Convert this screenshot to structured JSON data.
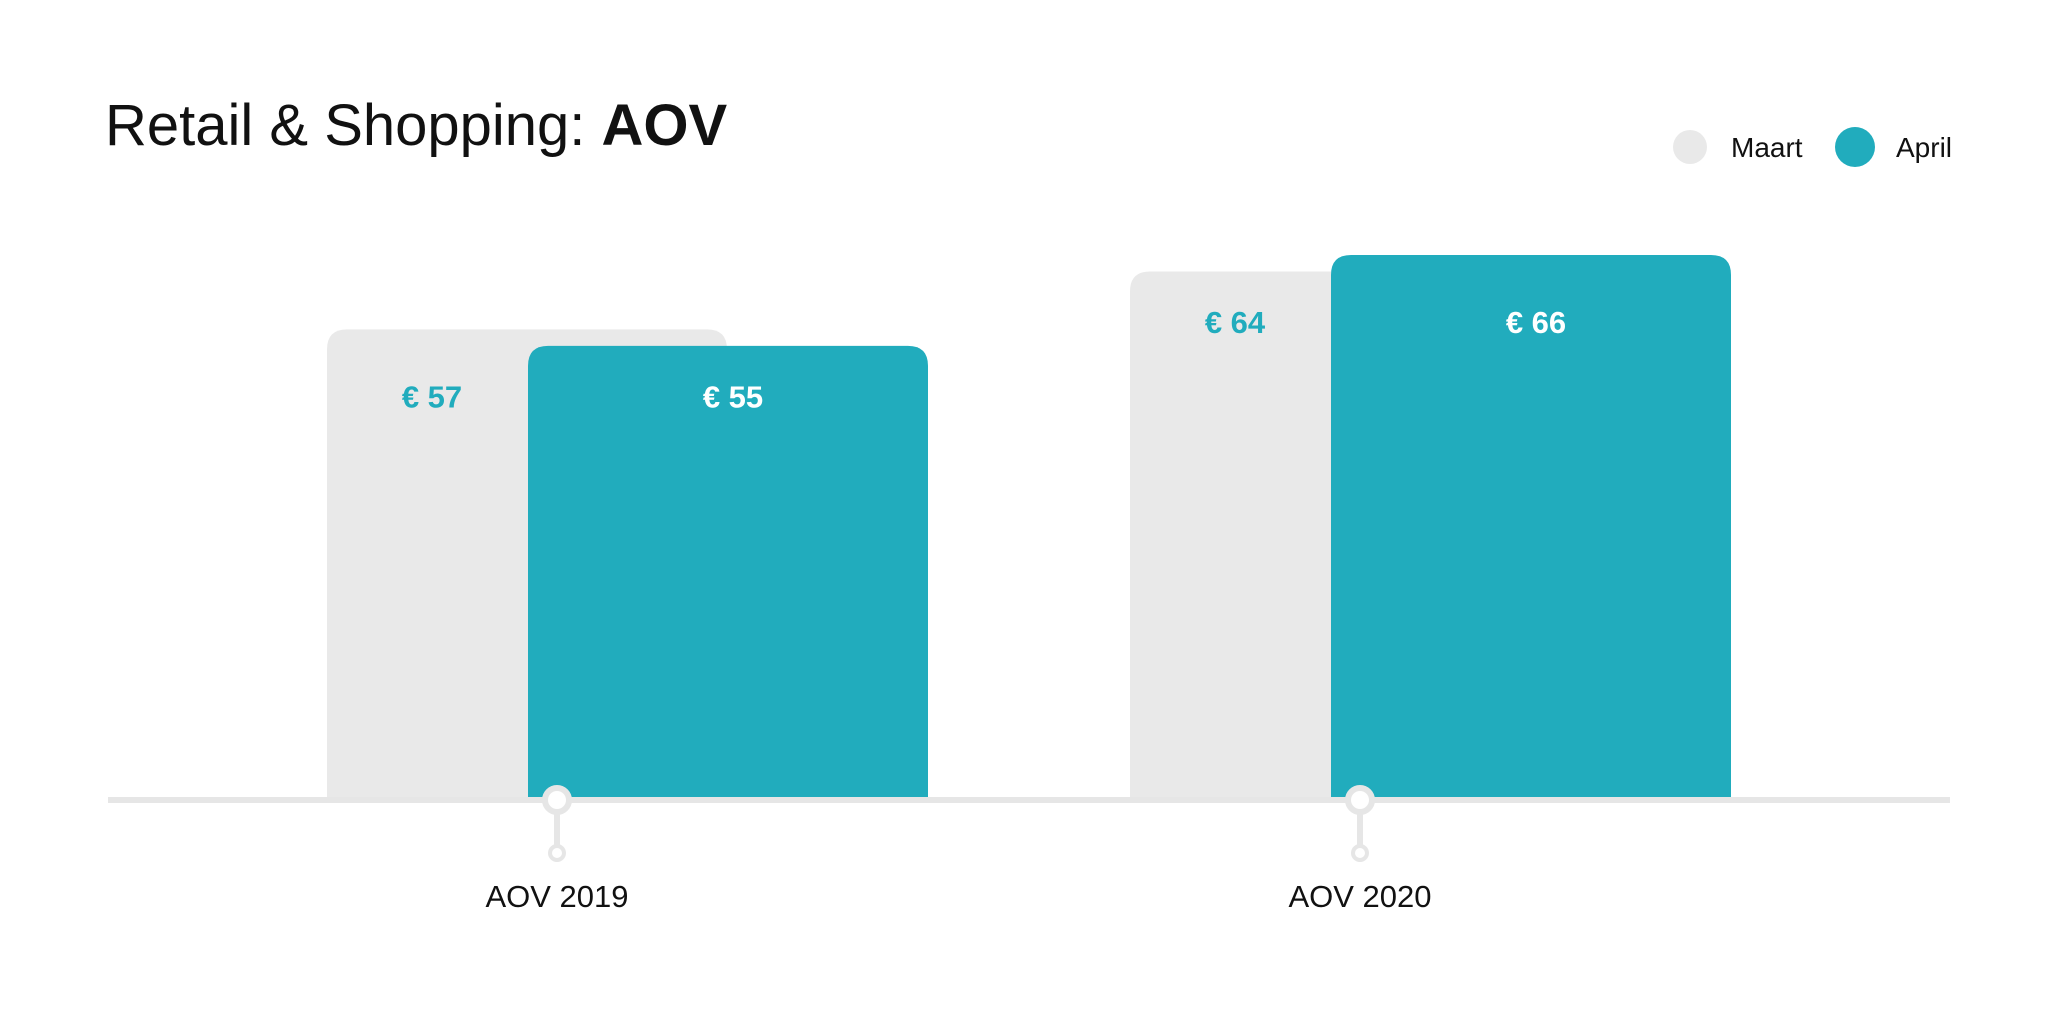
{
  "title": {
    "prefix": "Retail & Shopping: ",
    "emphasis": "AOV"
  },
  "colors": {
    "maart": "#e9e9e9",
    "april": "#21acbd",
    "baseline": "#e6e6e6",
    "label_on_grey": "#21acbd",
    "label_on_teal": "#ffffff",
    "text": "#111111"
  },
  "chart_data": {
    "type": "bar",
    "categories": [
      "AOV 2019",
      "AOV 2020"
    ],
    "series": [
      {
        "name": "Maart",
        "values": [
          57,
          64
        ],
        "labels": [
          "€ 57",
          "€ 64"
        ]
      },
      {
        "name": "April",
        "values": [
          55,
          66
        ],
        "labels": [
          "€ 55",
          "€ 66"
        ]
      }
    ],
    "legend_position": "top-right",
    "grid": false
  }
}
